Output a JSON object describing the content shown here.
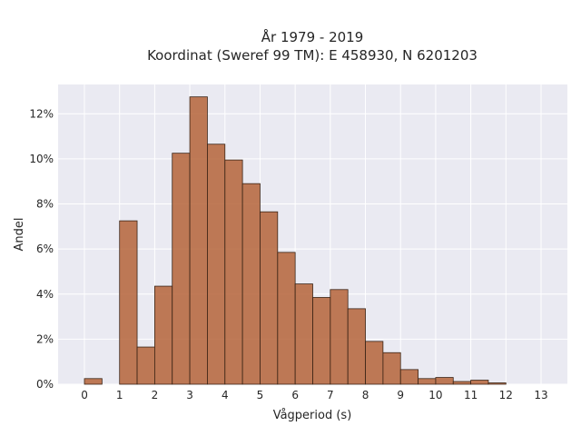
{
  "chart_data": {
    "type": "bar",
    "title_lines": [
      "År 1979 - 2019",
      "Koordinat (Sweref 99 TM): E 458930, N 6201203"
    ],
    "xlabel": "Vågperiod (s)",
    "ylabel": "Andel",
    "xlim": [
      -0.75,
      13.75
    ],
    "ylim": [
      0,
      13.3
    ],
    "x_ticks": [
      0,
      1,
      2,
      3,
      4,
      5,
      6,
      7,
      8,
      9,
      10,
      11,
      12,
      13
    ],
    "y_ticks": [
      0,
      2,
      4,
      6,
      8,
      10,
      12
    ],
    "y_tick_labels": [
      "0%",
      "2%",
      "4%",
      "6%",
      "8%",
      "10%",
      "12%"
    ],
    "bin_width": 0.5,
    "bins": [
      {
        "start": 0.0,
        "value": 0.25
      },
      {
        "start": 1.0,
        "value": 7.25
      },
      {
        "start": 1.5,
        "value": 1.65
      },
      {
        "start": 2.0,
        "value": 4.35
      },
      {
        "start": 2.5,
        "value": 10.25
      },
      {
        "start": 3.0,
        "value": 12.75
      },
      {
        "start": 3.5,
        "value": 10.65
      },
      {
        "start": 4.0,
        "value": 9.95
      },
      {
        "start": 4.5,
        "value": 8.9
      },
      {
        "start": 5.0,
        "value": 7.65
      },
      {
        "start": 5.5,
        "value": 5.85
      },
      {
        "start": 6.0,
        "value": 4.45
      },
      {
        "start": 6.5,
        "value": 3.85
      },
      {
        "start": 7.0,
        "value": 4.2
      },
      {
        "start": 7.5,
        "value": 3.35
      },
      {
        "start": 8.0,
        "value": 1.9
      },
      {
        "start": 8.5,
        "value": 1.4
      },
      {
        "start": 9.0,
        "value": 0.65
      },
      {
        "start": 9.5,
        "value": 0.25
      },
      {
        "start": 10.0,
        "value": 0.3
      },
      {
        "start": 10.5,
        "value": 0.12
      },
      {
        "start": 11.0,
        "value": 0.18
      },
      {
        "start": 11.5,
        "value": 0.06
      }
    ],
    "grid": true,
    "colors": {
      "bar": "#b5643a",
      "edge": "#3a2416",
      "background": "#eaeaf2",
      "grid": "#ffffff"
    }
  }
}
